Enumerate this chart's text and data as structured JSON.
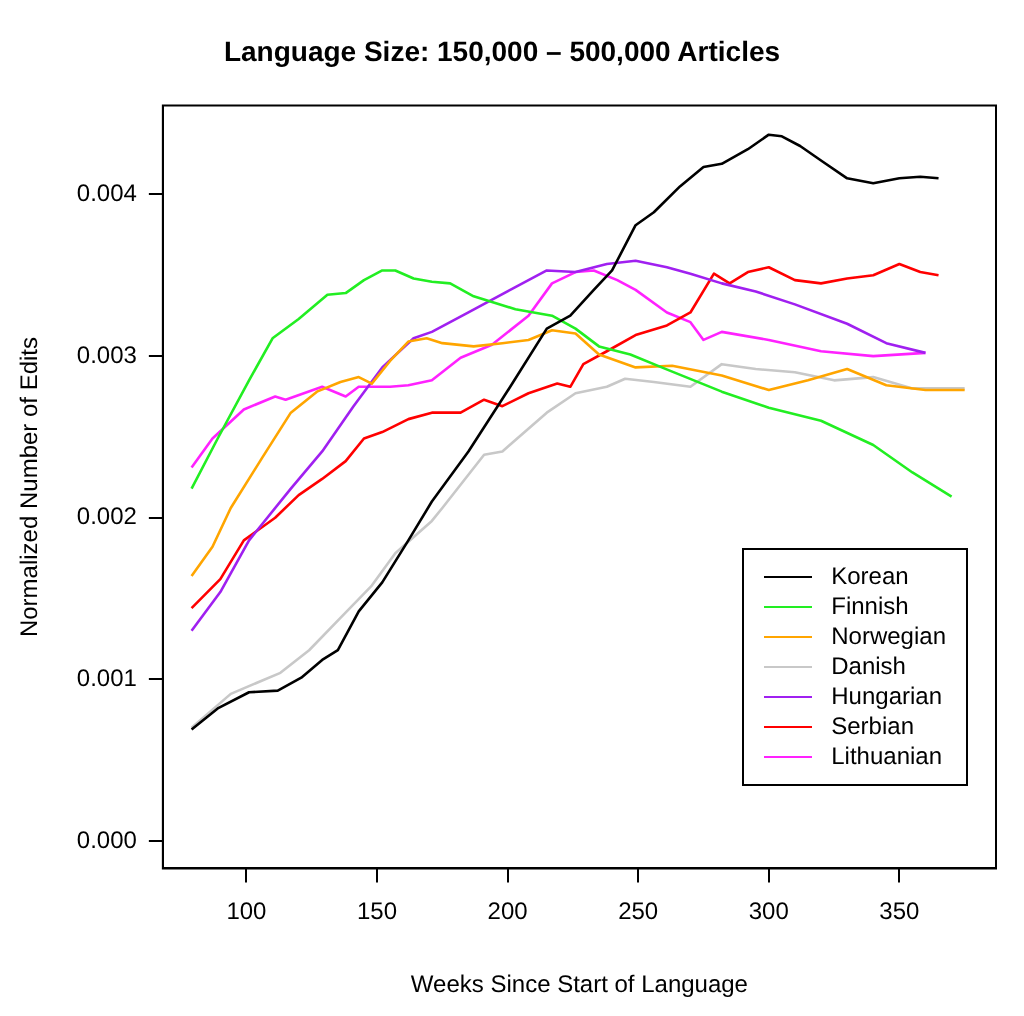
{
  "chart_data": {
    "type": "line",
    "title": "Language Size: 150,000 – 500,000 Articles",
    "xlabel": "Weeks Since Start of Language",
    "ylabel": "Normalized Number of Edits",
    "xlim": [
      68,
      387
    ],
    "ylim": [
      -0.00017,
      0.00455
    ],
    "xticks": [
      100,
      150,
      200,
      250,
      300,
      350
    ],
    "yticks": [
      {
        "value": 0,
        "label": "0.000"
      },
      {
        "value": 0.001,
        "label": "0.001"
      },
      {
        "value": 0.002,
        "label": "0.002"
      },
      {
        "value": 0.003,
        "label": "0.003"
      },
      {
        "value": 0.004,
        "label": "0.004"
      }
    ],
    "grid": false,
    "legend": "right",
    "marker": "none",
    "line_style": "solid",
    "series": [
      {
        "name": "Korean",
        "color": "#000000",
        "x": [
          79,
          89,
          101,
          112,
          121,
          129,
          135,
          143,
          152,
          162,
          171,
          185,
          201,
          215,
          224,
          233,
          240,
          249,
          256,
          266,
          275,
          282,
          292,
          300,
          305,
          312,
          320,
          330,
          340,
          350,
          358,
          365
        ],
        "values": [
          0.00069,
          0.00082,
          0.00092,
          0.00093,
          0.00101,
          0.00112,
          0.00118,
          0.00142,
          0.0016,
          0.00186,
          0.0021,
          0.00241,
          0.00281,
          0.00317,
          0.00325,
          0.00341,
          0.00353,
          0.00381,
          0.00389,
          0.00405,
          0.00417,
          0.00419,
          0.00428,
          0.00437,
          0.00436,
          0.0043,
          0.00421,
          0.0041,
          0.00407,
          0.0041,
          0.00411,
          0.0041
        ]
      },
      {
        "name": "Finnish",
        "color": "#22ee22",
        "x": [
          79,
          89,
          101,
          110,
          120,
          131,
          138,
          145,
          152,
          157,
          164,
          171,
          178,
          187,
          203,
          217,
          226,
          235,
          247,
          259,
          282,
          300,
          320,
          340,
          355,
          370
        ],
        "values": [
          0.00218,
          0.00249,
          0.00285,
          0.00311,
          0.00323,
          0.00338,
          0.00339,
          0.00347,
          0.00353,
          0.00353,
          0.00348,
          0.00346,
          0.00345,
          0.00337,
          0.00329,
          0.00325,
          0.00317,
          0.00306,
          0.00301,
          0.00293,
          0.00278,
          0.00268,
          0.0026,
          0.00245,
          0.00228,
          0.00213
        ]
      },
      {
        "name": "Norwegian",
        "color": "#ffa500",
        "x": [
          79,
          87,
          94,
          106,
          117,
          127,
          136,
          143,
          148,
          155,
          162,
          169,
          175,
          187,
          198,
          208,
          217,
          226,
          235,
          249,
          263,
          282,
          300,
          315,
          330,
          345,
          360,
          375
        ],
        "values": [
          0.00164,
          0.00182,
          0.00206,
          0.00237,
          0.00265,
          0.00278,
          0.00284,
          0.00287,
          0.00283,
          0.00297,
          0.00309,
          0.00311,
          0.00308,
          0.00306,
          0.00308,
          0.0031,
          0.00316,
          0.00314,
          0.00301,
          0.00293,
          0.00294,
          0.00288,
          0.00279,
          0.00285,
          0.00292,
          0.00282,
          0.00279,
          0.00279
        ]
      },
      {
        "name": "Danish",
        "color": "#c8c8c8",
        "x": [
          79,
          94,
          113,
          124,
          136,
          148,
          157,
          171,
          175,
          191,
          198,
          215,
          226,
          238,
          245,
          256,
          270,
          282,
          295,
          310,
          325,
          340,
          355,
          375
        ],
        "values": [
          0.0007,
          0.00091,
          0.00104,
          0.00118,
          0.00138,
          0.00158,
          0.00178,
          0.00198,
          0.00206,
          0.00239,
          0.00241,
          0.00265,
          0.00277,
          0.00281,
          0.00286,
          0.00284,
          0.00281,
          0.00295,
          0.00292,
          0.0029,
          0.00285,
          0.00287,
          0.0028,
          0.0028
        ]
      },
      {
        "name": "Hungarian",
        "color": "#a020f0",
        "x": [
          79,
          90,
          101,
          117,
          129,
          141,
          152,
          164,
          171,
          185,
          201,
          215,
          226,
          238,
          249,
          261,
          270,
          282,
          295,
          310,
          330,
          345,
          360
        ],
        "values": [
          0.0013,
          0.00154,
          0.00186,
          0.00218,
          0.00241,
          0.00269,
          0.00293,
          0.00311,
          0.00315,
          0.00327,
          0.00341,
          0.00353,
          0.00352,
          0.00357,
          0.00359,
          0.00355,
          0.00351,
          0.00345,
          0.0034,
          0.00332,
          0.0032,
          0.00308,
          0.00302
        ]
      },
      {
        "name": "Serbian",
        "color": "#ff0000",
        "x": [
          79,
          90,
          99,
          111,
          120,
          129,
          138,
          145,
          152,
          162,
          171,
          182,
          191,
          198,
          208,
          219,
          224,
          229,
          238,
          249,
          261,
          270,
          279,
          285,
          292,
          300,
          310,
          320,
          330,
          340,
          350,
          358,
          365
        ],
        "values": [
          0.00144,
          0.00162,
          0.00186,
          0.002,
          0.00214,
          0.00224,
          0.00235,
          0.00249,
          0.00253,
          0.00261,
          0.00265,
          0.00265,
          0.00273,
          0.00269,
          0.00277,
          0.00283,
          0.00281,
          0.00295,
          0.00303,
          0.00313,
          0.00319,
          0.00327,
          0.00351,
          0.00345,
          0.00352,
          0.00355,
          0.00347,
          0.00345,
          0.00348,
          0.0035,
          0.00357,
          0.00352,
          0.0035
        ]
      },
      {
        "name": "Lithuanian",
        "color": "#ff22ff",
        "x": [
          79,
          87,
          99,
          111,
          115,
          129,
          138,
          143,
          155,
          162,
          171,
          182,
          194,
          208,
          217,
          226,
          233,
          242,
          249,
          261,
          270,
          275,
          282,
          300,
          320,
          340,
          360
        ],
        "values": [
          0.00231,
          0.00249,
          0.00267,
          0.00275,
          0.00273,
          0.00281,
          0.00275,
          0.00281,
          0.00281,
          0.00282,
          0.00285,
          0.00299,
          0.00307,
          0.00325,
          0.00345,
          0.00352,
          0.00353,
          0.00347,
          0.00341,
          0.00327,
          0.00321,
          0.0031,
          0.00315,
          0.0031,
          0.00303,
          0.003,
          0.00302
        ]
      }
    ]
  }
}
